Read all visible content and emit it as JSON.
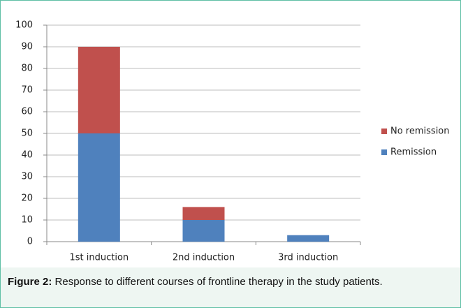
{
  "chart_data": {
    "type": "stacked-bar",
    "categories": [
      "1st induction",
      "2nd induction",
      "3rd induction"
    ],
    "series": [
      {
        "name": "Remission",
        "color": "#4f81bd",
        "values": [
          50,
          10,
          3
        ]
      },
      {
        "name": "No remission",
        "color": "#c0504d",
        "values": [
          40,
          6,
          0
        ]
      }
    ],
    "ylim": [
      0,
      100
    ],
    "yticks": [
      0,
      10,
      20,
      30,
      40,
      50,
      60,
      70,
      80,
      90,
      100
    ],
    "grid": true,
    "legend": "right"
  },
  "caption": {
    "label": "Figure 2:",
    "text": "Response to different courses of frontline therapy in the study patients."
  }
}
